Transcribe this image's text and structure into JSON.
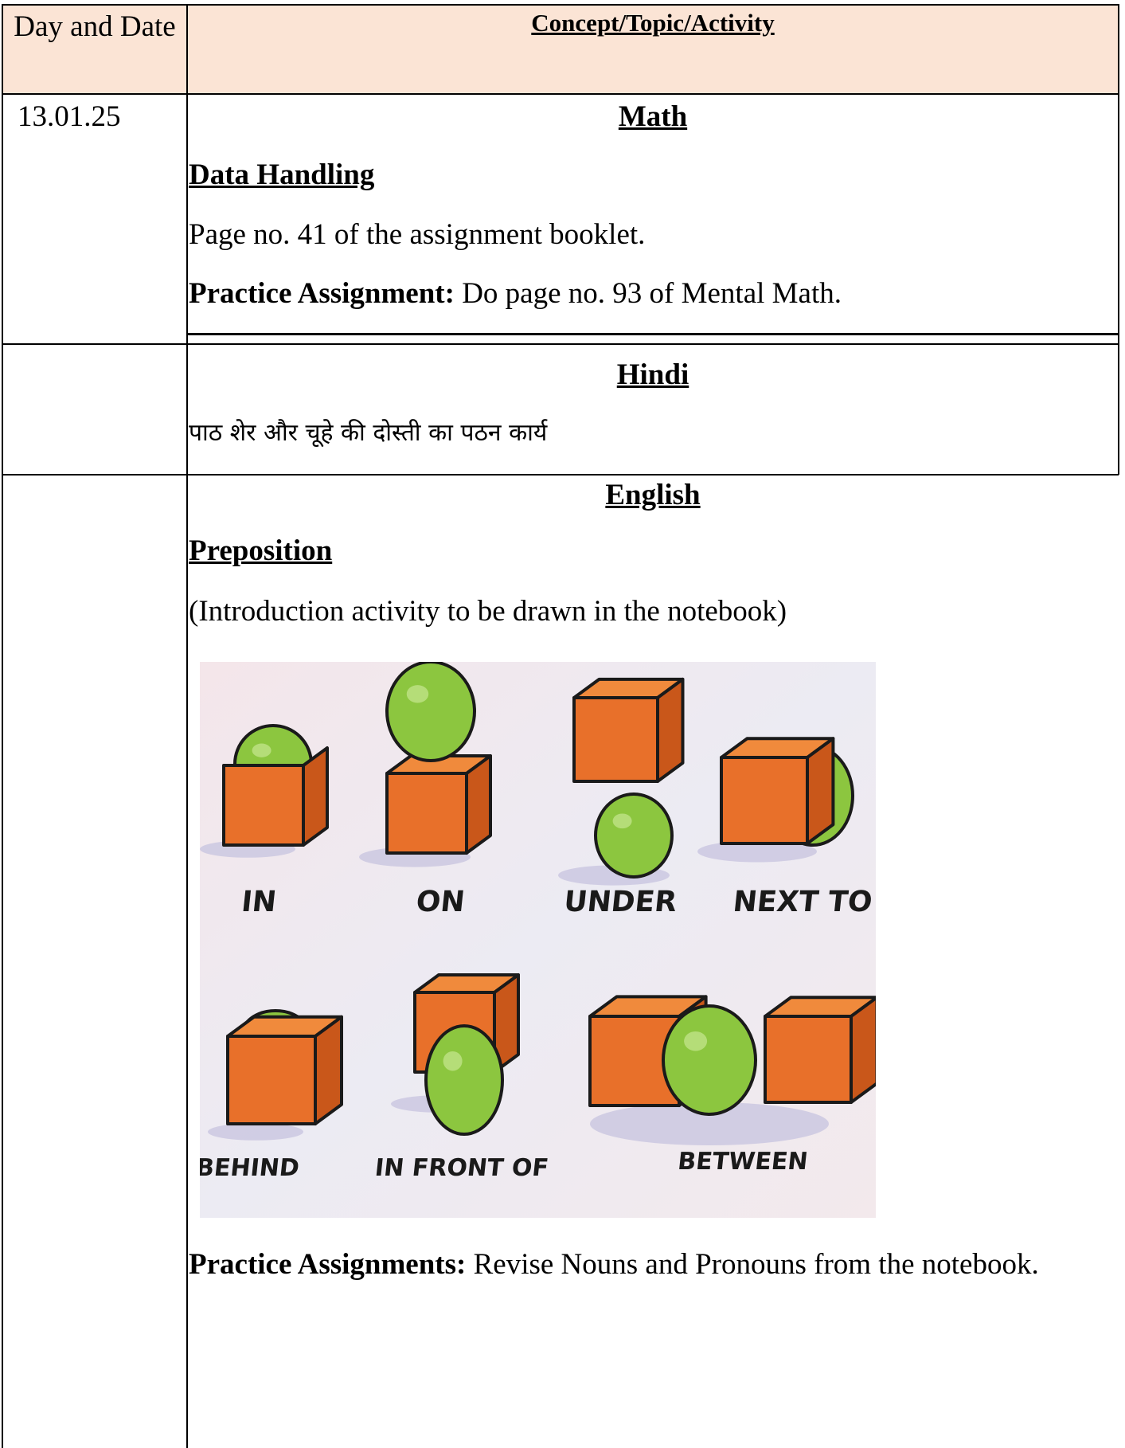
{
  "table": {
    "header": [
      "Day and Date",
      "Concept/Topic/Activity"
    ],
    "rows": [
      {
        "date": "13.01.25",
        "subject": "Math",
        "topic": "Data Handling",
        "text": "Page no. 41 of the assignment booklet.",
        "practice_label": "Practice Assignment:",
        "practice_text": "Do page no. 93 of Mental Math."
      },
      {
        "subject": "Hindi",
        "text": "पाठ शेर और चूहे की दोस्ती का पठन कार्य"
      },
      {
        "subject": "English",
        "topic": "Preposition",
        "text": "(Introduction activity to be drawn in the notebook)",
        "figure_labels": [
          "IN",
          "ON",
          "UNDER",
          "NEXT TO",
          "BEHIND",
          "IN FRONT OF",
          "BETWEEN"
        ],
        "practice_label": "Practice Assignments:",
        "practice_text": "Revise Nouns and Pronouns from the notebook."
      }
    ]
  }
}
